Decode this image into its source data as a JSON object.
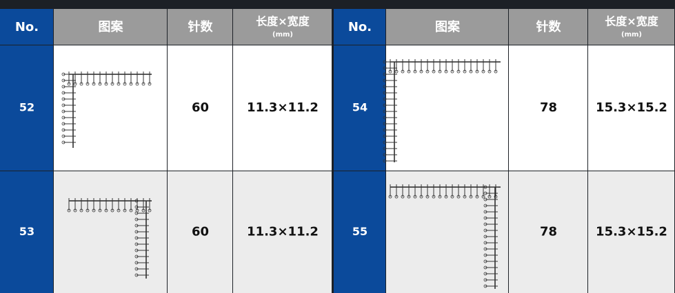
{
  "table": {
    "header": {
      "no": "No.",
      "pattern": "图案",
      "stitches": "针数",
      "size": "长度×宽度",
      "unit": "(mm)"
    },
    "rows": [
      {
        "no": "52",
        "stitches": "60",
        "size": "11.3×11.2"
      },
      {
        "no": "53",
        "stitches": "60",
        "size": "11.3×11.2"
      },
      {
        "no": "54",
        "stitches": "78",
        "size": "15.3×15.2"
      },
      {
        "no": "55",
        "stitches": "78",
        "size": "15.3×15.2"
      }
    ]
  }
}
